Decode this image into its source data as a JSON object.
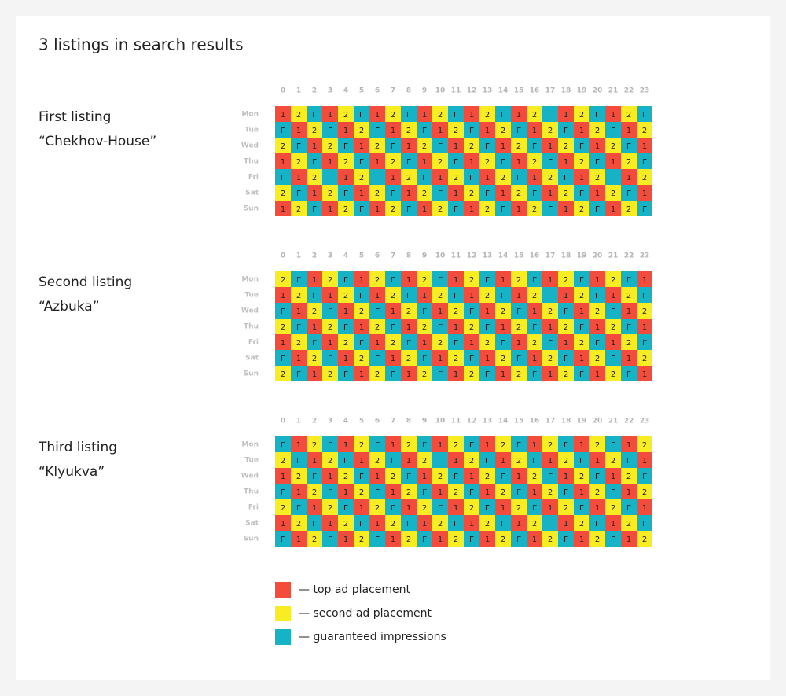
{
  "title": "3 listings in search results",
  "hours": [
    0,
    1,
    2,
    3,
    4,
    5,
    6,
    7,
    8,
    9,
    10,
    11,
    12,
    13,
    14,
    15,
    16,
    17,
    18,
    19,
    20,
    21,
    22,
    23
  ],
  "days": [
    "Mon",
    "Tue",
    "Wed",
    "Thu",
    "Fri",
    "Sat",
    "Sun"
  ],
  "cell_colors": {
    "1": "#f44c3c",
    "2": "#f8ec22",
    "Г": "#16b3c6"
  },
  "listings": [
    {
      "name": "First listing",
      "subtitle": "“Chekhov-House”",
      "rows": [
        [
          "1",
          "2",
          "Г",
          "1",
          "2",
          "Г",
          "1",
          "2",
          "Г",
          "1",
          "2",
          "Г",
          "1",
          "2",
          "Г",
          "1",
          "2",
          "Г",
          "1",
          "2",
          "Г",
          "1",
          "2",
          "Г"
        ],
        [
          "Г",
          "1",
          "2",
          "Г",
          "1",
          "2",
          "Г",
          "1",
          "2",
          "Г",
          "1",
          "2",
          "Г",
          "1",
          "2",
          "Г",
          "1",
          "2",
          "Г",
          "1",
          "2",
          "Г",
          "1",
          "2"
        ],
        [
          "2",
          "Г",
          "1",
          "2",
          "Г",
          "1",
          "2",
          "Г",
          "1",
          "2",
          "Г",
          "1",
          "2",
          "Г",
          "1",
          "2",
          "Г",
          "1",
          "2",
          "Г",
          "1",
          "2",
          "Г",
          "1"
        ],
        [
          "1",
          "2",
          "Г",
          "1",
          "2",
          "Г",
          "1",
          "2",
          "Г",
          "1",
          "2",
          "Г",
          "1",
          "2",
          "Г",
          "1",
          "2",
          "Г",
          "1",
          "2",
          "Г",
          "1",
          "2",
          "Г"
        ],
        [
          "Г",
          "1",
          "2",
          "Г",
          "1",
          "2",
          "Г",
          "1",
          "2",
          "Г",
          "1",
          "2",
          "Г",
          "1",
          "2",
          "Г",
          "1",
          "2",
          "Г",
          "1",
          "2",
          "Г",
          "1",
          "2"
        ],
        [
          "2",
          "Г",
          "1",
          "2",
          "Г",
          "1",
          "2",
          "Г",
          "1",
          "2",
          "Г",
          "1",
          "2",
          "Г",
          "1",
          "2",
          "Г",
          "1",
          "2",
          "Г",
          "1",
          "2",
          "Г",
          "1"
        ],
        [
          "1",
          "2",
          "Г",
          "1",
          "2",
          "Г",
          "1",
          "2",
          "Г",
          "1",
          "2",
          "Г",
          "1",
          "2",
          "Г",
          "1",
          "2",
          "Г",
          "1",
          "2",
          "Г",
          "1",
          "2",
          "Г"
        ]
      ]
    },
    {
      "name": "Second listing",
      "subtitle": "“Azbuka”",
      "rows": [
        [
          "2",
          "Г",
          "1",
          "2",
          "Г",
          "1",
          "2",
          "Г",
          "1",
          "2",
          "Г",
          "1",
          "2",
          "Г",
          "1",
          "2",
          "Г",
          "1",
          "2",
          "Г",
          "1",
          "2",
          "Г",
          "1"
        ],
        [
          "1",
          "2",
          "Г",
          "1",
          "2",
          "Г",
          "1",
          "2",
          "Г",
          "1",
          "2",
          "Г",
          "1",
          "2",
          "Г",
          "1",
          "2",
          "Г",
          "1",
          "2",
          "Г",
          "1",
          "2",
          "Г"
        ],
        [
          "Г",
          "1",
          "2",
          "Г",
          "1",
          "2",
          "Г",
          "1",
          "2",
          "Г",
          "1",
          "2",
          "Г",
          "1",
          "2",
          "Г",
          "1",
          "2",
          "Г",
          "1",
          "2",
          "Г",
          "1",
          "2"
        ],
        [
          "2",
          "Г",
          "1",
          "2",
          "Г",
          "1",
          "2",
          "Г",
          "1",
          "2",
          "Г",
          "1",
          "2",
          "Г",
          "1",
          "2",
          "Г",
          "1",
          "2",
          "Г",
          "1",
          "2",
          "Г",
          "1"
        ],
        [
          "1",
          "2",
          "Г",
          "1",
          "2",
          "Г",
          "1",
          "2",
          "Г",
          "1",
          "2",
          "Г",
          "1",
          "2",
          "Г",
          "1",
          "2",
          "Г",
          "1",
          "2",
          "Г",
          "1",
          "2",
          "Г"
        ],
        [
          "Г",
          "1",
          "2",
          "Г",
          "1",
          "2",
          "Г",
          "1",
          "2",
          "Г",
          "1",
          "2",
          "Г",
          "1",
          "2",
          "Г",
          "1",
          "2",
          "Г",
          "1",
          "2",
          "Г",
          "1",
          "2"
        ],
        [
          "2",
          "Г",
          "1",
          "2",
          "Г",
          "1",
          "2",
          "Г",
          "1",
          "2",
          "Г",
          "1",
          "2",
          "Г",
          "1",
          "2",
          "Г",
          "1",
          "2",
          "Г",
          "1",
          "2",
          "Г",
          "1"
        ]
      ]
    },
    {
      "name": "Third listing",
      "subtitle": "“Klyukva”",
      "rows": [
        [
          "Г",
          "1",
          "2",
          "Г",
          "1",
          "2",
          "Г",
          "1",
          "2",
          "Г",
          "1",
          "2",
          "Г",
          "1",
          "2",
          "Г",
          "1",
          "2",
          "Г",
          "1",
          "2",
          "Г",
          "1",
          "2"
        ],
        [
          "2",
          "Г",
          "1",
          "2",
          "Г",
          "1",
          "2",
          "Г",
          "1",
          "2",
          "Г",
          "1",
          "2",
          "Г",
          "1",
          "2",
          "Г",
          "1",
          "2",
          "Г",
          "1",
          "2",
          "Г",
          "1"
        ],
        [
          "1",
          "2",
          "Г",
          "1",
          "2",
          "Г",
          "1",
          "2",
          "Г",
          "1",
          "2",
          "Г",
          "1",
          "2",
          "Г",
          "1",
          "2",
          "Г",
          "1",
          "2",
          "Г",
          "1",
          "2",
          "Г"
        ],
        [
          "Г",
          "1",
          "2",
          "Г",
          "1",
          "2",
          "Г",
          "1",
          "2",
          "Г",
          "1",
          "2",
          "Г",
          "1",
          "2",
          "Г",
          "1",
          "2",
          "Г",
          "1",
          "2",
          "Г",
          "1",
          "2"
        ],
        [
          "2",
          "Г",
          "1",
          "2",
          "Г",
          "1",
          "2",
          "Г",
          "1",
          "2",
          "Г",
          "1",
          "2",
          "Г",
          "1",
          "2",
          "Г",
          "1",
          "2",
          "Г",
          "1",
          "2",
          "Г",
          "1"
        ],
        [
          "1",
          "2",
          "Г",
          "1",
          "2",
          "Г",
          "1",
          "2",
          "Г",
          "1",
          "2",
          "Г",
          "1",
          "2",
          "Г",
          "1",
          "2",
          "Г",
          "1",
          "2",
          "Г",
          "1",
          "2",
          "Г"
        ],
        [
          "Г",
          "1",
          "2",
          "Г",
          "1",
          "2",
          "Г",
          "1",
          "2",
          "Г",
          "1",
          "2",
          "Г",
          "1",
          "2",
          "Г",
          "1",
          "2",
          "Г",
          "1",
          "2",
          "Г",
          "1",
          "2"
        ]
      ]
    }
  ],
  "legend": [
    {
      "label": "— top ad placement",
      "color": "#f44c3c"
    },
    {
      "label": "— second ad placement",
      "color": "#f8ec22"
    },
    {
      "label": "— guaranteed impressions",
      "color": "#16b3c6"
    }
  ]
}
